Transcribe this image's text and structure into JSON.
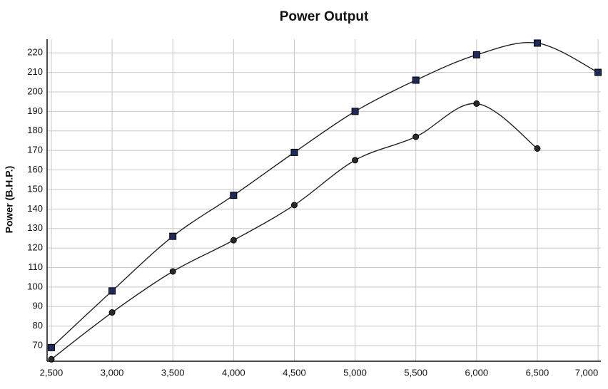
{
  "chart_data": {
    "type": "line",
    "title": "Power Output",
    "y_label": "Power (B.H.P.)",
    "x": [
      2500,
      3000,
      3500,
      4000,
      4500,
      5000,
      5500,
      6000,
      6500,
      7000
    ],
    "xticks": [
      {
        "value": 2500,
        "label": "2,500"
      },
      {
        "value": 3000,
        "label": "3,000"
      },
      {
        "value": 3500,
        "label": "3,500"
      },
      {
        "value": 4000,
        "label": "4,000"
      },
      {
        "value": 4500,
        "label": "4,500"
      },
      {
        "value": 5000,
        "label": "5,000"
      },
      {
        "value": 5500,
        "label": "5,500"
      },
      {
        "value": 6000,
        "label": "6,000"
      },
      {
        "value": 6500,
        "label": "6,500"
      },
      {
        "value": 7000,
        "label": "7,000"
      }
    ],
    "xlim": [
      2465,
      7023
    ],
    "ylim": [
      62,
      227
    ],
    "yticks": [
      70,
      80,
      90,
      100,
      110,
      120,
      130,
      140,
      150,
      160,
      170,
      180,
      190,
      200,
      210,
      220
    ],
    "grid": true,
    "series": [
      {
        "color": "#1f2a5c",
        "marker": "square",
        "values": [
          69,
          98,
          126,
          147,
          169,
          190,
          206,
          219,
          225,
          210
        ]
      },
      {
        "color": "#2a2a2a",
        "marker": "circle",
        "values": [
          63,
          87,
          108,
          124,
          142,
          165,
          177,
          194,
          171,
          null
        ]
      }
    ]
  }
}
